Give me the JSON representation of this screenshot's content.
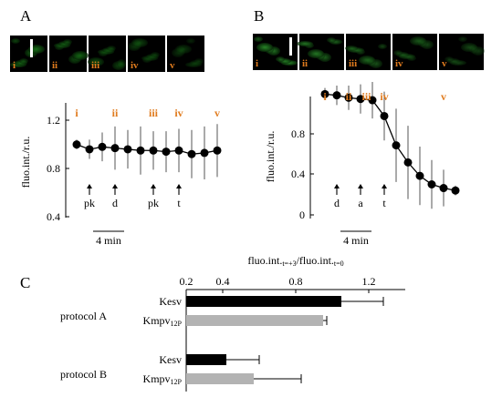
{
  "chart_data": [
    {
      "panel": "A",
      "type": "line",
      "ylabel": "fluo.int./r.u.",
      "ylim": [
        0.4,
        1.3
      ],
      "yticks": [
        "0.4",
        "0.8",
        "1.2"
      ],
      "x": [
        0,
        1,
        2,
        3,
        4,
        5,
        6,
        7,
        8,
        9,
        10,
        11
      ],
      "y": [
        1.0,
        0.96,
        0.98,
        0.97,
        0.96,
        0.95,
        0.95,
        0.94,
        0.95,
        0.92,
        0.93,
        0.95
      ],
      "err": [
        0.04,
        0.08,
        0.12,
        0.18,
        0.16,
        0.2,
        0.16,
        0.17,
        0.18,
        0.2,
        0.22,
        0.22
      ],
      "stage_labels": [
        {
          "label": "i",
          "x": 0
        },
        {
          "label": "ii",
          "x": 3
        },
        {
          "label": "iii",
          "x": 6
        },
        {
          "label": "iv",
          "x": 8
        },
        {
          "label": "v",
          "x": 11
        }
      ],
      "events": [
        {
          "label": "pk",
          "x": 1
        },
        {
          "label": "d",
          "x": 3
        },
        {
          "label": "pk",
          "x": 6
        },
        {
          "label": "t",
          "x": 8
        }
      ],
      "scale_bar": "4 min",
      "cell_labels": [
        "i",
        "ii",
        "iii",
        "iv",
        "v"
      ]
    },
    {
      "panel": "B",
      "type": "line",
      "ylabel": "fluo.int./r.u.",
      "ylim": [
        0,
        1.0
      ],
      "yticks": [
        "0",
        "0.4",
        "0.8"
      ],
      "x": [
        0,
        1,
        2,
        3,
        4,
        5,
        6,
        7,
        8,
        9,
        10,
        11
      ],
      "y": [
        0.99,
        0.98,
        0.96,
        0.95,
        0.94,
        0.81,
        0.57,
        0.43,
        0.32,
        0.25,
        0.22,
        0.2
      ],
      "err": [
        0.05,
        0.08,
        0.1,
        0.12,
        0.15,
        0.2,
        0.3,
        0.3,
        0.24,
        0.2,
        0.15,
        0.04
      ],
      "stage_labels": [
        {
          "label": "i",
          "x": 0
        },
        {
          "label": "ii",
          "x": 2
        },
        {
          "label": "iii",
          "x": 3.5
        },
        {
          "label": "iv",
          "x": 5
        },
        {
          "label": "v",
          "x": 10
        }
      ],
      "events": [
        {
          "label": "d",
          "x": 1
        },
        {
          "label": "a",
          "x": 3
        },
        {
          "label": "t",
          "x": 5
        }
      ],
      "scale_bar": "4 min",
      "cell_labels": [
        "i",
        "ii",
        "iii",
        "iv",
        "v"
      ]
    },
    {
      "panel": "C",
      "type": "bar",
      "orientation": "horizontal",
      "xlabel_main": "fluo.int.",
      "xlabel_sub1": "t=+3",
      "xlabel_mid": "/fluo.int.",
      "xlabel_sub2": "t=0",
      "xlim": [
        0.2,
        1.4
      ],
      "xticks": [
        "0.2",
        "0.4",
        "0.8",
        "1.2"
      ],
      "groups": [
        {
          "name": "protocol A",
          "bars": [
            {
              "label_main": "Kesv",
              "label_sub": "",
              "value": 1.05,
              "err": 0.23,
              "color": "#000000"
            },
            {
              "label_main": "Kmpv",
              "label_sub": "12P",
              "value": 0.95,
              "err": 0.02,
              "color": "#b3b3b3"
            }
          ]
        },
        {
          "name": "protocol B",
          "bars": [
            {
              "label_main": "Kesv",
              "label_sub": "",
              "value": 0.42,
              "err": 0.18,
              "color": "#000000"
            },
            {
              "label_main": "Kmpv",
              "label_sub": "12P",
              "value": 0.57,
              "err": 0.26,
              "color": "#b3b3b3"
            }
          ]
        }
      ]
    }
  ]
}
